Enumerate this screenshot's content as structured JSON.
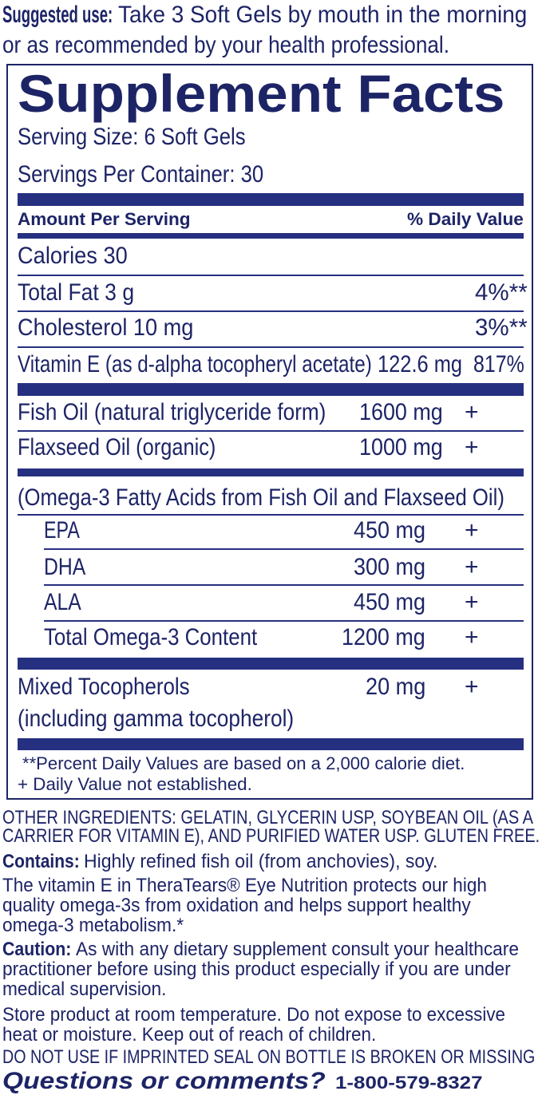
{
  "colors": {
    "text": "#1d2466",
    "bars": "#263080",
    "background": "#ffffff"
  },
  "suggested_use": {
    "label": "Suggested use:",
    "line1": "Take 3 Soft Gels by mouth in the morning",
    "line2": "or as recommended by your health professional."
  },
  "facts": {
    "title": "Supplement Facts",
    "serving_size": "Serving Size: 6 Soft Gels",
    "servings_per_container": "Servings Per Container: 30",
    "header_amount": "Amount Per Serving",
    "header_dv": "% Daily Value",
    "rows": [
      {
        "name": "Calories  30",
        "amount": "",
        "dv": ""
      },
      {
        "name": "Total Fat  3 g",
        "amount": "",
        "dv": "4%**"
      },
      {
        "name": "Cholesterol  10 mg",
        "amount": "",
        "dv": "3%**"
      },
      {
        "name": "Vitamin E (as d-alpha tocopheryl acetate)",
        "amount": "122.6 mg",
        "dv": "817%"
      },
      {
        "name": "Fish Oil (natural triglyceride form)",
        "amount": "1600 mg",
        "dv": "+"
      },
      {
        "name": "Flaxseed Oil (organic)",
        "amount": "1000 mg",
        "dv": "+"
      }
    ],
    "omega_header": "(Omega-3 Fatty Acids from Fish Oil and Flaxseed Oil)",
    "omega_rows": [
      {
        "name": "EPA",
        "amount": "450 mg",
        "dv": "+"
      },
      {
        "name": "DHA",
        "amount": "300 mg",
        "dv": "+"
      },
      {
        "name": "ALA",
        "amount": "450 mg",
        "dv": "+"
      },
      {
        "name": "Total Omega-3 Content",
        "amount": "1200 mg",
        "dv": "+"
      }
    ],
    "tocopherols": {
      "name_line1": "Mixed Tocopherols",
      "name_line2": "(including gamma tocopherol)",
      "amount": "20 mg",
      "dv": "+"
    },
    "footnote1": "**Percent Daily Values are based on a 2,000 calorie diet.",
    "footnote2": "+ Daily Value not established."
  },
  "other": {
    "ingredients_line1": "OTHER INGREDIENTS: GELATIN, GLYCERIN USP, SOYBEAN OIL (AS A",
    "ingredients_line2": "CARRIER FOR VITAMIN E), AND PURIFIED WATER USP. GLUTEN FREE.",
    "contains_label": "Contains:",
    "contains_text": "Highly refined fish oil (from anchovies), soy.",
    "vitamin_line1": "The vitamin E in TheraTears® Eye Nutrition protects our high",
    "vitamin_line2": "quality omega-3s from oxidation and helps support healthy",
    "vitamin_line3": "omega-3 metabolism.*",
    "caution_label": "Caution:",
    "caution_line1": "As with any dietary supplement consult your healthcare",
    "caution_line2": "practitioner before using this product especially if you are under",
    "caution_line3": "medical supervision.",
    "store_line1": "Store product at room temperature. Do not expose to excessive",
    "store_line2": "heat or moisture. Keep out of reach of children.",
    "seal_warning": "DO NOT USE IF IMPRINTED SEAL ON BOTTLE IS BROKEN OR MISSING",
    "questions": "Questions or comments?",
    "phone": "1-800-579-8327"
  }
}
